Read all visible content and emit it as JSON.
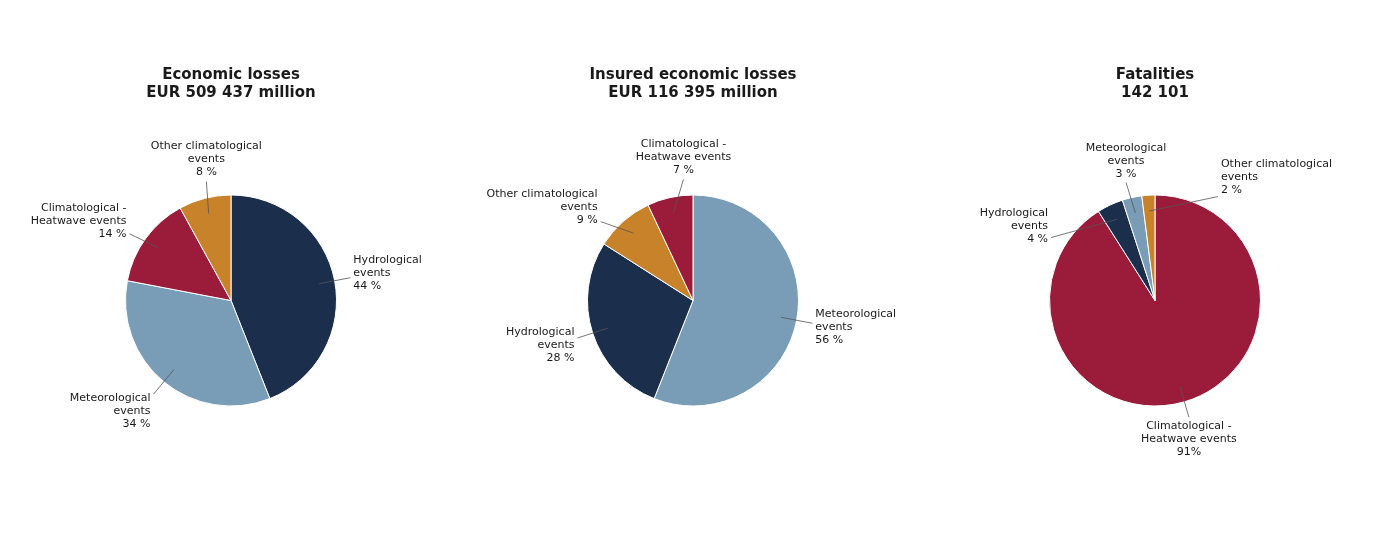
{
  "chart_data": [
    {
      "type": "pie",
      "title": "Economic losses",
      "subtitle": "EUR 509 437 million",
      "values": [
        44,
        34,
        14,
        8
      ],
      "value_labels": [
        "Hydrological\nevents\n44 %",
        "Meteorological\nevents\n34 %",
        "Climatological -\nHeatwave events\n14 %",
        "Other climatological\nevents\n8 %"
      ],
      "colors": [
        "#1b2e4b",
        "#7a9db7",
        "#9b1c3a",
        "#c8832a"
      ],
      "data_labels": true,
      "legend": false
    },
    {
      "type": "pie",
      "title": "Insured economic losses",
      "subtitle": "EUR 116 395 million",
      "values": [
        56,
        28,
        9,
        7
      ],
      "value_labels": [
        "Meteorological\nevents\n56 %",
        "Hydrological\nevents\n28 %",
        "Other climatological\nevents\n9 %",
        "Climatological -\nHeatwave events\n7 %"
      ],
      "colors": [
        "#7a9db7",
        "#1b2e4b",
        "#c8832a",
        "#9b1c3a"
      ],
      "data_labels": true,
      "legend": false
    },
    {
      "type": "pie",
      "title": "Fatalities",
      "subtitle": "142 101",
      "values": [
        91,
        4,
        3,
        2
      ],
      "value_labels": [
        "Climatological -\nHeatwave events\n91%",
        "Hydrological\nevents\n4 %",
        "Meteorological\nevents\n3 %",
        "Other climatological\nevents\n2 %"
      ],
      "colors": [
        "#9b1c3a",
        "#1b2e4b",
        "#7a9db7",
        "#c8832a"
      ],
      "data_labels": true,
      "legend": false
    }
  ]
}
